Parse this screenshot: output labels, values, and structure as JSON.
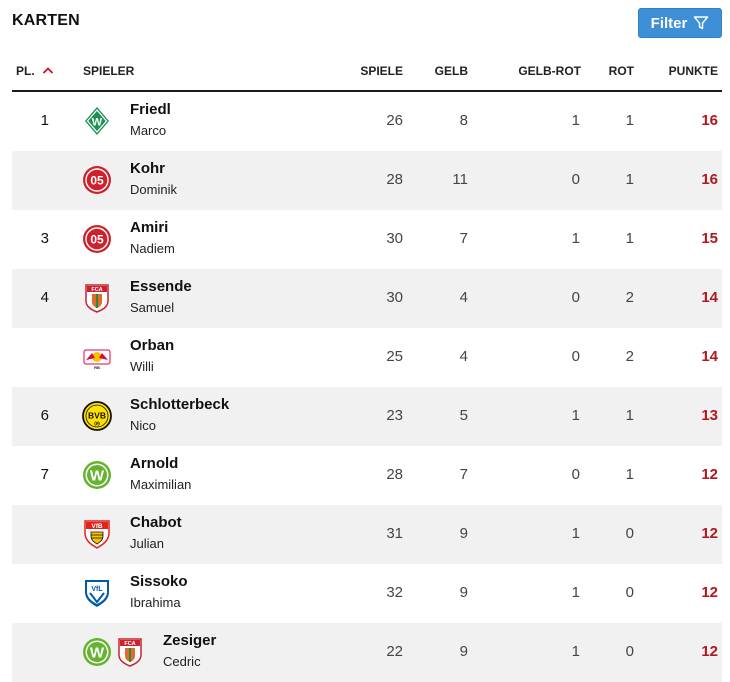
{
  "page": {
    "title": "KARTEN"
  },
  "filter": {
    "label": "Filter"
  },
  "columns": {
    "pl": "PL.",
    "player": "SPIELER",
    "games": "SPIELE",
    "yellow": "GELB",
    "yellow_red": "GELB-ROT",
    "red": "ROT",
    "points": "PUNKTE"
  },
  "rows": [
    {
      "rank": "1",
      "last": "Friedl",
      "first": "Marco",
      "games": "26",
      "yellow": "8",
      "yellow_red": "1",
      "red": "1",
      "points": "16",
      "clubs": [
        "werder-bremen-logo"
      ]
    },
    {
      "rank": "",
      "last": "Kohr",
      "first": "Dominik",
      "games": "28",
      "yellow": "11",
      "yellow_red": "0",
      "red": "1",
      "points": "16",
      "clubs": [
        "mainz-05-logo"
      ]
    },
    {
      "rank": "3",
      "last": "Amiri",
      "first": "Nadiem",
      "games": "30",
      "yellow": "7",
      "yellow_red": "1",
      "red": "1",
      "points": "15",
      "clubs": [
        "mainz-05-logo"
      ]
    },
    {
      "rank": "4",
      "last": "Essende",
      "first": "Samuel",
      "games": "30",
      "yellow": "4",
      "yellow_red": "0",
      "red": "2",
      "points": "14",
      "clubs": [
        "augsburg-logo"
      ]
    },
    {
      "rank": "",
      "last": "Orban",
      "first": "Willi",
      "games": "25",
      "yellow": "4",
      "yellow_red": "0",
      "red": "2",
      "points": "14",
      "clubs": [
        "leipzig-logo"
      ]
    },
    {
      "rank": "6",
      "last": "Schlotterbeck",
      "first": "Nico",
      "games": "23",
      "yellow": "5",
      "yellow_red": "1",
      "red": "1",
      "points": "13",
      "clubs": [
        "dortmund-logo"
      ]
    },
    {
      "rank": "7",
      "last": "Arnold",
      "first": "Maximilian",
      "games": "28",
      "yellow": "7",
      "yellow_red": "0",
      "red": "1",
      "points": "12",
      "clubs": [
        "wolfsburg-logo"
      ]
    },
    {
      "rank": "",
      "last": "Chabot",
      "first": "Julian",
      "games": "31",
      "yellow": "9",
      "yellow_red": "1",
      "red": "0",
      "points": "12",
      "clubs": [
        "stuttgart-logo"
      ]
    },
    {
      "rank": "",
      "last": "Sissoko",
      "first": "Ibrahima",
      "games": "32",
      "yellow": "9",
      "yellow_red": "1",
      "red": "0",
      "points": "12",
      "clubs": [
        "bochum-logo"
      ]
    },
    {
      "rank": "",
      "last": "Zesiger",
      "first": "Cedric",
      "games": "22",
      "yellow": "9",
      "yellow_red": "1",
      "red": "0",
      "points": "12",
      "clubs": [
        "wolfsburg-logo",
        "augsburg-logo"
      ]
    }
  ],
  "logo_text": {
    "dortmund": "BVB",
    "mainz": "05",
    "wolfsburg": "W",
    "stuttgart": "VfB",
    "augsburg": "FCA",
    "bochum": "VfL",
    "werder": "W",
    "leipzig": "RB"
  },
  "colors": {
    "points": "#b3171c",
    "filter_bg": "#3d8fd6",
    "sort_arrow": "#c8102e",
    "alt_row": "#f1f1f1"
  }
}
